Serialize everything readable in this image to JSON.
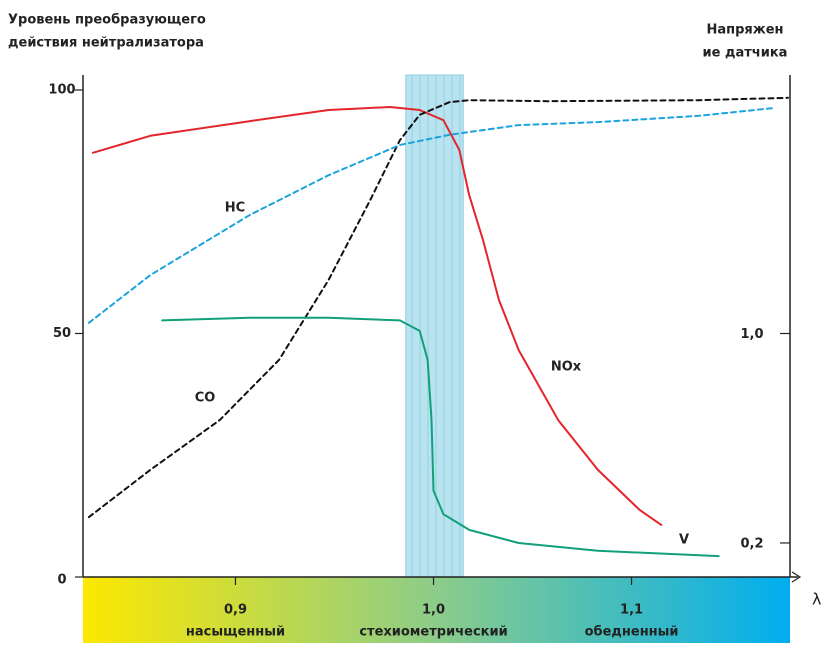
{
  "chart_data": {
    "type": "line",
    "y_title": [
      "Уровень преобразующего",
      "действия нейтрализатора"
    ],
    "y2_title": [
      "Напряжен",
      "ие датчика"
    ],
    "x_title": "λ",
    "xlim": [
      0.823,
      1.18
    ],
    "xticks": [
      {
        "value": 0.9,
        "label": "0,9"
      },
      {
        "value": 1.0,
        "label": "1,0"
      },
      {
        "value": 1.1,
        "label": "1,1"
      }
    ],
    "x_zone_labels": [
      {
        "x": 0.9,
        "label": "насыщенный"
      },
      {
        "x": 1.0,
        "label": "стехиометрический"
      },
      {
        "x": 1.1,
        "label": "обедненный"
      }
    ],
    "ylim": [
      0,
      100
    ],
    "yticks": [
      0,
      50,
      100
    ],
    "y2lim": [
      0.07,
      1.93
    ],
    "y2ticks": [
      {
        "value": 1.0,
        "label": "1,0"
      },
      {
        "value": 0.2,
        "label": "0,2"
      }
    ],
    "window": [
      0.986,
      1.015
    ],
    "series": [
      {
        "name": "NOx",
        "color": "#e3262b",
        "dash": false,
        "x": [
          0.828,
          0.857,
          0.907,
          0.947,
          0.978,
          0.993,
          1.005,
          1.013,
          1.018,
          1.025,
          1.033,
          1.043,
          1.063,
          1.083,
          1.104,
          1.115
        ],
        "values": [
          87.1,
          90.6,
          93.6,
          95.9,
          96.5,
          95.9,
          93.8,
          87.7,
          78.4,
          69.2,
          56.9,
          46.6,
          32.2,
          22.0,
          13.8,
          10.7
        ]
      },
      {
        "name": "CO",
        "color": "#111111",
        "dash": true,
        "x": [
          0.826,
          0.857,
          0.892,
          0.922,
          0.947,
          0.968,
          0.983,
          0.993,
          1.008,
          1.018,
          1.058,
          1.134,
          1.179
        ],
        "values": [
          12.3,
          22.0,
          32.2,
          44.6,
          61.0,
          77.4,
          89.7,
          94.9,
          97.5,
          97.9,
          97.7,
          97.9,
          98.4
        ]
      },
      {
        "name": "HC",
        "color": "#1aa3dc",
        "dash": true,
        "x": [
          0.826,
          0.857,
          0.907,
          0.947,
          0.983,
          1.008,
          1.043,
          1.083,
          1.134,
          1.172
        ],
        "values": [
          52.2,
          62.0,
          74.3,
          82.5,
          88.7,
          90.8,
          92.8,
          93.4,
          94.7,
          96.3
        ]
      },
      {
        "name": "V",
        "color": "#12a07a",
        "dash": false,
        "axis": "y2",
        "x": [
          0.863,
          0.907,
          0.947,
          0.983,
          0.993,
          0.997,
          0.999,
          1.0,
          1.005,
          1.018,
          1.043,
          1.083,
          1.144
        ],
        "values": [
          1.05,
          1.06,
          1.06,
          1.05,
          1.01,
          0.9,
          0.67,
          0.4,
          0.31,
          0.25,
          0.2,
          0.17,
          0.15
        ]
      }
    ]
  }
}
